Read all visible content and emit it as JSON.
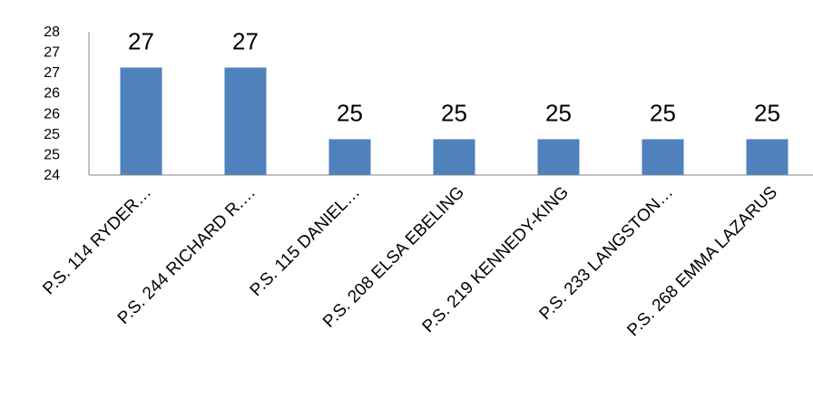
{
  "chart_data": {
    "type": "bar",
    "title": "",
    "xlabel": "",
    "ylabel": "",
    "categories": [
      "P.S. 114 RYDER…",
      "P.S. 244 RICHARD R.…",
      "P.S. 115 DANIEL…",
      "P.S. 208 ELSA EBELING",
      "P.S. 219 KENNEDY-KING",
      "P.S. 233 LANGSTON…",
      "P.S. 268 EMMA LAZARUS"
    ],
    "values": [
      27,
      27,
      25,
      25,
      25,
      25,
      25
    ],
    "data_labels": [
      "27",
      "27",
      "25",
      "25",
      "25",
      "25",
      "25"
    ],
    "ylim": [
      24,
      28
    ],
    "y_tick_labels": [
      "28",
      "27",
      "27",
      "26",
      "26",
      "25",
      "25",
      "24"
    ],
    "grid": false,
    "legend": "none",
    "bar_color": "#4f81bd",
    "axis_color": "#868686"
  }
}
